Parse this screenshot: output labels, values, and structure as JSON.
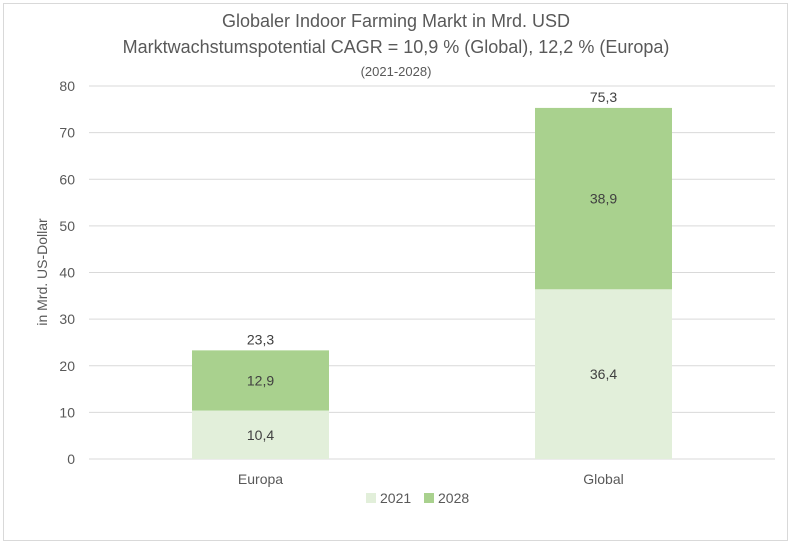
{
  "chart_data": {
    "type": "bar",
    "stacked": true,
    "title": "Globaler Indoor Farming Markt in Mrd. USD",
    "subtitle": "Marktwachstumspotential CAGR = 10,9 % (Global), 12,2 % (Europa)",
    "subtitle2": "(2021-2028)",
    "ylabel": "in Mrd. US-Dollar",
    "xlabel": "",
    "categories": [
      "Europa",
      "Global"
    ],
    "series": [
      {
        "name": "2021",
        "values": [
          10.4,
          36.4
        ],
        "labels": [
          "10,4",
          "36,4"
        ],
        "color": "#e2efda"
      },
      {
        "name": "2028",
        "values": [
          12.9,
          38.9
        ],
        "labels": [
          "12,9",
          "38,9"
        ],
        "color": "#a9d18e"
      }
    ],
    "totals": [
      23.3,
      75.3
    ],
    "total_labels": [
      "23,3",
      "75,3"
    ],
    "ylim": [
      0,
      80
    ],
    "yticks": [
      0,
      10,
      20,
      30,
      40,
      50,
      60,
      70,
      80
    ],
    "grid": true,
    "legend_position": "bottom"
  }
}
